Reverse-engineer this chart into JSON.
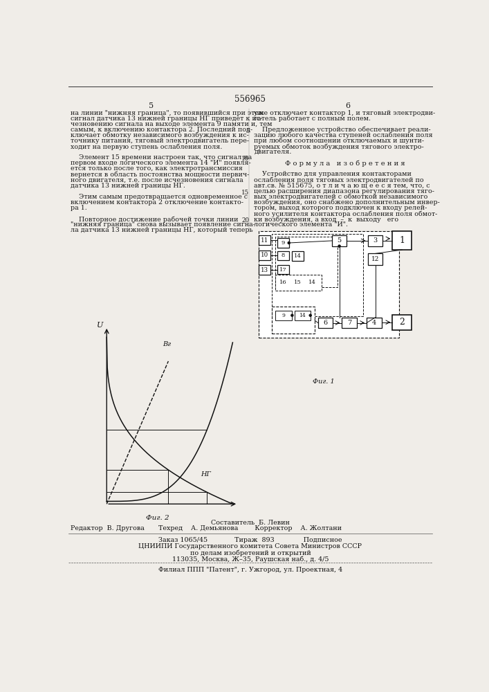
{
  "patent_number": "556965",
  "page_left": "5",
  "page_right": "6",
  "left_column_text": [
    "на линии \"нижняя граница\", то появившийся при этом",
    "сигнал датчика 13 нижней границы НГ приведет к ис-",
    "чезновению сигнала на выходе элемента 9 памяти и, тем",
    "самым, к включению контактора 2. Последний под-",
    "ключает обмотку независимого возбуждения к ис-",
    "точнику питания, тяговый электродвигатель пере-",
    "ходит на первую ступень ослабления поля.",
    "",
    "    Элемент 15 времени настроен так, что сигнал на",
    "первом входе логического элемента 14 \"И\" появля-",
    "ется только после того, как электротрансмиссия",
    "вернется в область постоянства мощности первич-",
    "ного двигателя, т.е. после исчезновения сигнала",
    "датчика 13 нижней границы НГ.",
    "",
    "    Этим самым предотвращается одновременное с",
    "включением контактора 2 отключение контакто-",
    "ра 1.",
    "",
    "    Повторное достижение рабочей точки линии",
    "\"нижняя граница\" снова вызывает появление сигна-",
    "ла датчика 13 нижней границы НГ, который теперь"
  ],
  "right_col_1": [
    "уже отключает контактор 1, и тяговый электродви-",
    "гатель работает с полным полем.",
    "",
    "    Предложенное устройство обеспечивает реали-",
    "зацию любого качества ступеней ослабления поля",
    "при любом соотношении отключаемых и шунти-",
    "руемых обмоток возбуждения тягового электро-",
    "двигателя.",
    "",
    "Ф о р м у л а   и з о б р е т е н и я",
    "",
    "    Устройство для управления контакторами",
    "ослабления поля тяговых электродвигателей по",
    "авт.св. № 515675, о т л и ч а ю щ е е с я тем, что, с",
    "целью расширения диапазона регулирования тяго-",
    "вых электродвигателей с обмоткой независимого",
    "возбуждения, оно снабжено дополнительным инвер-",
    "тором, выход которого подключен к входу релей-",
    "ного усилителя контактора ослабления поля обмот-",
    "ки возбуждения, а вход  –  к  выходу   его",
    "логического элемента \"И\"."
  ],
  "bg_color": "#f0ede8",
  "text_color": "#1a1a1a"
}
